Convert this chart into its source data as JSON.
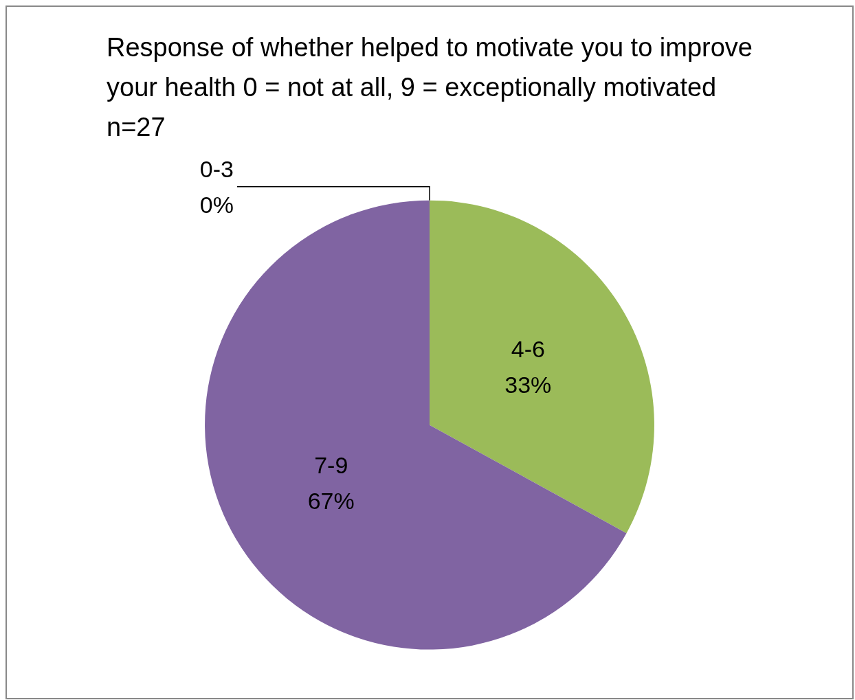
{
  "chart_data": {
    "type": "pie",
    "title": "Response of whether helped to motivate you to improve your health 0 = not at all, 9 = exceptionally motivated n=27",
    "categories": [
      "0-3",
      "4-6",
      "7-9"
    ],
    "values": [
      0,
      33,
      67
    ],
    "colors": [
      "#4f81bd",
      "#9bbb59",
      "#8064a2"
    ],
    "value_labels": [
      "0%",
      "33%",
      "67%"
    ],
    "legend": false
  }
}
